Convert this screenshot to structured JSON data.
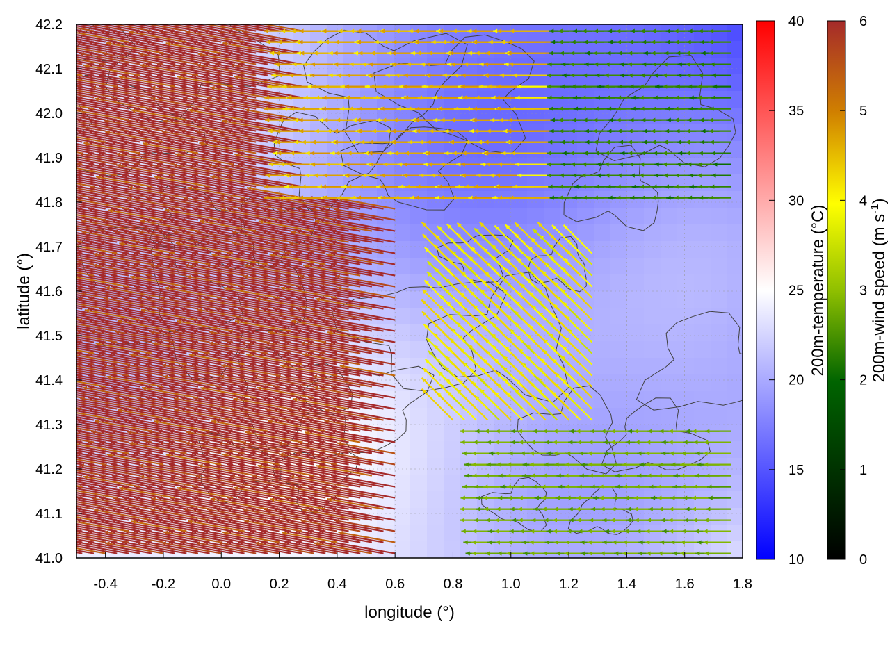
{
  "chart_data": {
    "type": "vector-field",
    "title": "",
    "xlabel": "longitude (°)",
    "ylabel": "latitude (°)",
    "xlim": [
      -0.5,
      1.8
    ],
    "ylim": [
      41.0,
      42.2
    ],
    "x_ticks": [
      "-0.4",
      "-0.2",
      "0.0",
      "0.2",
      "0.4",
      "0.6",
      "0.8",
      "1.0",
      "1.2",
      "1.4",
      "1.6",
      "1.8"
    ],
    "y_ticks": [
      "41.0",
      "41.1",
      "41.2",
      "41.3",
      "41.4",
      "41.5",
      "41.6",
      "41.7",
      "41.8",
      "41.9",
      "42.0",
      "42.1",
      "42.2"
    ],
    "grid": true,
    "contour_color": "#404040",
    "temperature_colorbar": {
      "label": "200m-temperature (°C)",
      "range": [
        10,
        40
      ],
      "ticks": [
        "10",
        "15",
        "20",
        "25",
        "30",
        "35",
        "40"
      ],
      "colors": [
        "#0000ff",
        "#ffffff",
        "#ff0000"
      ],
      "typical_value": 22
    },
    "wind_colorbar": {
      "label_main": "200m-wind speed (m s",
      "label_sup": "-1",
      "label_end": ")",
      "range": [
        0,
        6
      ],
      "ticks": [
        "0",
        "1",
        "2",
        "3",
        "4",
        "5",
        "6"
      ],
      "colors": [
        "#000000",
        "#006400",
        "#90c000",
        "#ffff00",
        "#d08000",
        "#a52a2a"
      ]
    },
    "wind_regions": [
      {
        "region": "west",
        "lon": [
          -0.5,
          0.6
        ],
        "lat": [
          41.0,
          42.2
        ],
        "speed": 6.0,
        "direction": "from east-southeast"
      },
      {
        "region": "north-central",
        "lon": [
          0.3,
          1.2
        ],
        "lat": [
          41.8,
          42.2
        ],
        "speed": 4.0,
        "direction": "from east"
      },
      {
        "region": "central",
        "lon": [
          0.8,
          1.3
        ],
        "lat": [
          41.3,
          41.7
        ],
        "speed": 3.5,
        "direction": "from south-east"
      },
      {
        "region": "south-east",
        "lon": [
          0.9,
          1.8
        ],
        "lat": [
          41.0,
          41.3
        ],
        "speed": 2.0,
        "direction": "from east"
      },
      {
        "region": "north-east",
        "lon": [
          1.2,
          1.8
        ],
        "lat": [
          41.8,
          42.2
        ],
        "speed": 1.5,
        "direction": "from east"
      }
    ]
  }
}
